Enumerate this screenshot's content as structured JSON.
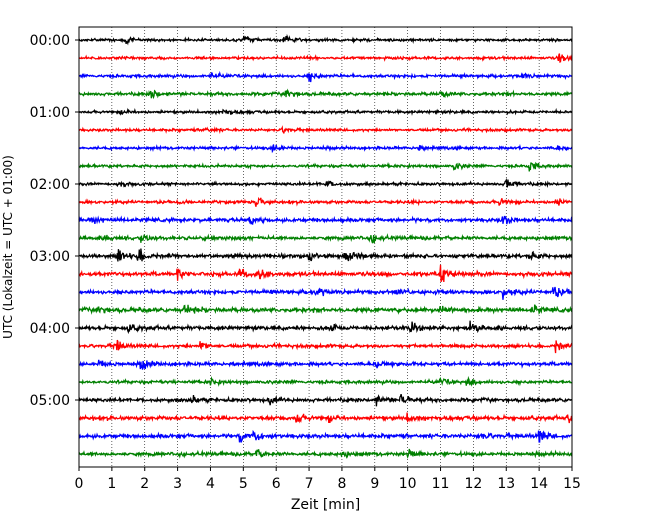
{
  "chart_data": {
    "type": "line",
    "description_style": "helicorder",
    "xlabel": "Zeit  [min]",
    "ylabel": "UTC (Lokalzeit = UTC + 01:00)",
    "xlim": [
      0,
      15
    ],
    "x_ticks": [
      0,
      1,
      2,
      3,
      4,
      5,
      6,
      7,
      8,
      9,
      10,
      11,
      12,
      13,
      14,
      15
    ],
    "x_tick_labels": [
      "0",
      "1",
      "2",
      "3",
      "4",
      "5",
      "6",
      "7",
      "8",
      "9",
      "10",
      "11",
      "12",
      "13",
      "14",
      "15"
    ],
    "y_tick_labels": [
      "00:00",
      "01:00",
      "02:00",
      "03:00",
      "04:00",
      "05:00"
    ],
    "trace_minutes": 15,
    "trace_count": 24,
    "trace_colors": [
      "#000000",
      "#ff0000",
      "#0000ff",
      "#008000"
    ],
    "vertical_grid": "dotted",
    "traces": [
      {
        "start": "00:00",
        "activity": 0.18,
        "events": [
          [
            1.4,
            0.5
          ],
          [
            5.0,
            0.6
          ],
          [
            6.2,
            0.7
          ]
        ]
      },
      {
        "start": "00:15",
        "activity": 0.2,
        "events": [
          [
            14.6,
            0.9
          ]
        ]
      },
      {
        "start": "00:30",
        "activity": 0.25,
        "events": [
          [
            7.0,
            0.9
          ],
          [
            4.0,
            0.5
          ],
          [
            13.5,
            0.4
          ]
        ]
      },
      {
        "start": "00:45",
        "activity": 0.28,
        "events": [
          [
            2.2,
            0.8
          ],
          [
            6.3,
            0.9
          ],
          [
            11.0,
            0.5
          ]
        ]
      },
      {
        "start": "01:00",
        "activity": 0.2,
        "events": [
          [
            4.4,
            0.7
          ],
          [
            1.3,
            0.4
          ]
        ]
      },
      {
        "start": "01:15",
        "activity": 0.18,
        "events": [
          [
            3.8,
            0.4
          ],
          [
            6.2,
            0.5
          ]
        ]
      },
      {
        "start": "01:30",
        "activity": 0.22,
        "events": [
          [
            5.9,
            0.8
          ],
          [
            10.3,
            0.5
          ],
          [
            14.5,
            0.4
          ]
        ]
      },
      {
        "start": "01:45",
        "activity": 0.22,
        "events": [
          [
            11.4,
            0.6
          ],
          [
            13.7,
            0.9
          ]
        ]
      },
      {
        "start": "02:00",
        "activity": 0.22,
        "events": [
          [
            1.2,
            0.5
          ],
          [
            7.5,
            0.6
          ],
          [
            13.0,
            1.2
          ]
        ]
      },
      {
        "start": "02:15",
        "activity": 0.25,
        "events": [
          [
            5.4,
            0.9
          ],
          [
            12.8,
            0.7
          ],
          [
            14.5,
            0.7
          ]
        ]
      },
      {
        "start": "02:30",
        "activity": 0.35,
        "events": [
          [
            0.4,
            0.6
          ],
          [
            5.2,
            0.6
          ],
          [
            12.9,
            0.8
          ]
        ]
      },
      {
        "start": "02:45",
        "activity": 0.35,
        "events": [
          [
            1.9,
            0.8
          ],
          [
            8.9,
            0.7
          ],
          [
            0.8,
            0.5
          ]
        ]
      },
      {
        "start": "03:00",
        "activity": 0.4,
        "events": [
          [
            1.2,
            1.1
          ],
          [
            1.8,
            1.0
          ],
          [
            7.0,
            0.9
          ],
          [
            8.1,
            0.9
          ],
          [
            13.7,
            0.6
          ]
        ]
      },
      {
        "start": "03:15",
        "activity": 0.42,
        "events": [
          [
            3.0,
            1.3
          ],
          [
            4.9,
            0.9
          ],
          [
            5.5,
            1.0
          ],
          [
            11.0,
            1.3
          ]
        ]
      },
      {
        "start": "03:30",
        "activity": 0.4,
        "events": [
          [
            7.2,
            0.9
          ],
          [
            9.6,
            0.7
          ],
          [
            12.9,
            0.8
          ],
          [
            14.4,
            1.1
          ]
        ]
      },
      {
        "start": "03:45",
        "activity": 0.45,
        "events": [
          [
            0.6,
            0.7
          ],
          [
            3.2,
            0.6
          ],
          [
            11.0,
            1.0
          ],
          [
            13.8,
            0.8
          ]
        ]
      },
      {
        "start": "04:00",
        "activity": 0.4,
        "events": [
          [
            1.5,
            0.7
          ],
          [
            7.6,
            0.7
          ],
          [
            10.1,
            0.9
          ],
          [
            11.9,
            0.7
          ]
        ]
      },
      {
        "start": "04:15",
        "activity": 0.3,
        "events": [
          [
            1.1,
            1.0
          ],
          [
            3.7,
            0.9
          ],
          [
            14.5,
            0.9
          ]
        ]
      },
      {
        "start": "04:30",
        "activity": 0.35,
        "events": [
          [
            1.9,
            1.1
          ],
          [
            0.6,
            0.6
          ],
          [
            9.0,
            0.5
          ]
        ]
      },
      {
        "start": "04:45",
        "activity": 0.28,
        "events": [
          [
            4.0,
            0.4
          ],
          [
            11.0,
            0.5
          ],
          [
            11.8,
            0.6
          ]
        ]
      },
      {
        "start": "05:00",
        "activity": 0.35,
        "events": [
          [
            3.4,
            0.8
          ],
          [
            5.8,
            0.8
          ],
          [
            9.0,
            0.9
          ],
          [
            9.8,
            1.0
          ]
        ]
      },
      {
        "start": "05:15",
        "activity": 0.4,
        "events": [
          [
            6.6,
            0.9
          ],
          [
            7.6,
            0.7
          ],
          [
            10.0,
            0.7
          ],
          [
            14.9,
            0.8
          ]
        ]
      },
      {
        "start": "05:30",
        "activity": 0.4,
        "events": [
          [
            4.9,
            0.9
          ],
          [
            5.3,
            0.9
          ],
          [
            12.2,
            0.6
          ],
          [
            14.0,
            1.1
          ]
        ]
      },
      {
        "start": "05:45",
        "activity": 0.35,
        "events": [
          [
            5.4,
            0.8
          ],
          [
            10.0,
            0.8
          ],
          [
            8.0,
            0.6
          ]
        ]
      }
    ]
  }
}
